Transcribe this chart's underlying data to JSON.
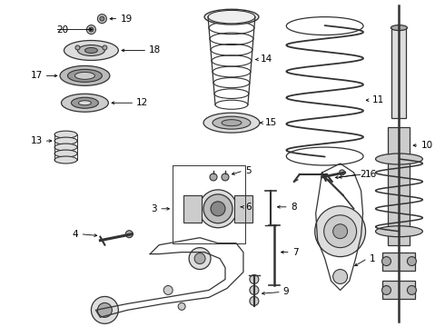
{
  "bg_color": "#ffffff",
  "line_color": "#333333",
  "label_fontsize": 7.5,
  "parts_color": "#555555",
  "fill_light": "#dddddd",
  "fill_mid": "#aaaaaa",
  "fill_dark": "#777777"
}
